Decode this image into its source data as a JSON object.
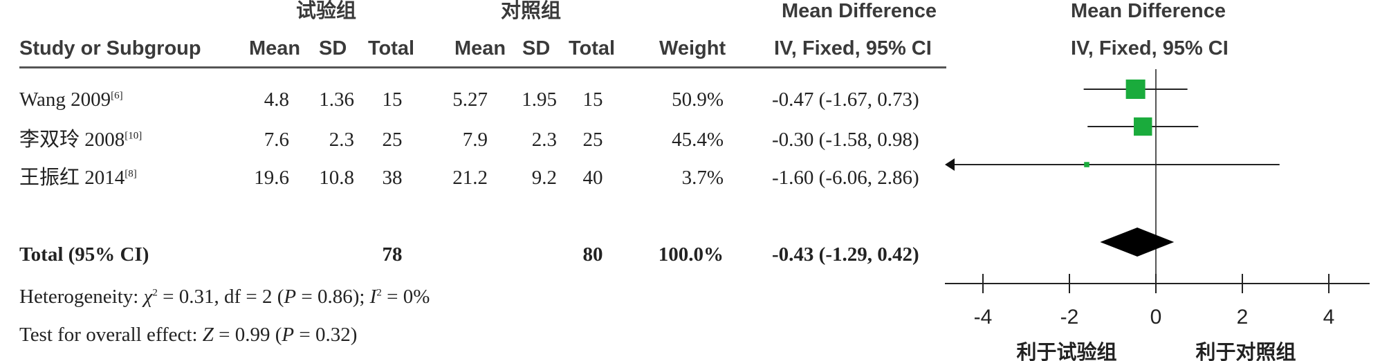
{
  "headers": {
    "group_experimental": "试验组",
    "group_control": "对照组",
    "study_col": "Study or Subgroup",
    "mean": "Mean",
    "sd": "SD",
    "total": "Total",
    "weight": "Weight",
    "md_title": "Mean Difference",
    "md_method": "IV, Fixed, 95% CI",
    "plot_title": "Mean Difference",
    "plot_method": "IV, Fixed, 95% CI"
  },
  "studies": [
    {
      "name": "Wang 2009",
      "ref": "[6]",
      "e_mean": "4.8",
      "e_sd": "1.36",
      "e_total": "15",
      "c_mean": "5.27",
      "c_sd": "1.95",
      "c_total": "15",
      "weight": "50.9%",
      "ci_text": "-0.47 (-1.67, 0.73)"
    },
    {
      "name": "李双玲 2008",
      "ref": "[10]",
      "e_mean": "7.6",
      "e_sd": "2.3",
      "e_total": "25",
      "c_mean": "7.9",
      "c_sd": "2.3",
      "c_total": "25",
      "weight": "45.4%",
      "ci_text": "-0.30 (-1.58, 0.98)"
    },
    {
      "name": "王振红 2014",
      "ref": "[8]",
      "e_mean": "19.6",
      "e_sd": "10.8",
      "e_total": "38",
      "c_mean": "21.2",
      "c_sd": "9.2",
      "c_total": "40",
      "weight": "3.7%",
      "ci_text": "-1.60 (-6.06, 2.86)"
    }
  ],
  "total": {
    "label": "Total (95% CI)",
    "e_total": "78",
    "c_total": "80",
    "weight": "100.0%",
    "ci_text": "-0.43 (-1.29, 0.42)"
  },
  "footer": {
    "het_prefix": "Heterogeneity: ",
    "het_chi": "χ",
    "het_chi_sup": "2",
    "het_mid": " = 0.31, df = 2 (",
    "het_p": "P",
    "het_p_val": " = 0.86); ",
    "het_i": "I",
    "het_i_sup": "2",
    "het_i_val": " = 0%",
    "overall_prefix": "Test for overall effect: ",
    "overall_z": "Z",
    "overall_mid": " = 0.99 (",
    "overall_p": "P",
    "overall_p_val": " = 0.32)"
  },
  "chart_data": {
    "type": "forest",
    "xlim": [
      -5,
      5
    ],
    "ticks": [
      -4,
      -2,
      0,
      2,
      4
    ],
    "tick_labels": [
      "-4",
      "-2",
      "0",
      "2",
      "4"
    ],
    "favours_left": "利于试验组",
    "favours_right": "利于对照组",
    "marker_color": "#1aab3c",
    "points": [
      {
        "md": -0.47,
        "lower": -1.67,
        "upper": 0.73,
        "weight": 50.9
      },
      {
        "md": -0.3,
        "lower": -1.58,
        "upper": 0.98,
        "weight": 45.4
      },
      {
        "md": -1.6,
        "lower": -6.06,
        "upper": 2.86,
        "weight": 3.7
      }
    ],
    "pooled": {
      "md": -0.43,
      "lower": -1.29,
      "upper": 0.42
    }
  }
}
